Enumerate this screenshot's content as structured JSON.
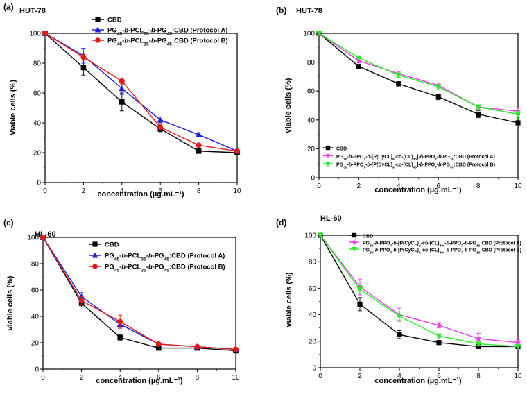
{
  "chart_data": [
    {
      "id": "a",
      "type": "line",
      "panel_label": "(a)",
      "cell_line": "HUT-78",
      "xlabel": "concentration (µg.mL⁻¹)",
      "ylabel": "Viable cells (%)",
      "xlim": [
        0,
        10
      ],
      "ylim": [
        0,
        100
      ],
      "xticks": [
        0,
        2,
        4,
        6,
        8,
        10
      ],
      "yticks": [
        0,
        20,
        40,
        60,
        80,
        100
      ],
      "legend_position": "top-center",
      "x": [
        0,
        2,
        4,
        6,
        8,
        10
      ],
      "series": [
        {
          "name": "CBD",
          "color": "#000000",
          "marker": "square",
          "values": [
            100,
            77,
            54,
            36,
            21,
            20
          ],
          "errors": [
            0,
            5,
            6,
            2,
            1,
            1
          ]
        },
        {
          "name": "PG45-b-PCL35-b-PG45:CBD  (Protocol A)",
          "color": "#1f1fd6",
          "marker": "triangle-up",
          "values": [
            100,
            85,
            63,
            42,
            32,
            21
          ],
          "errors": [
            0,
            5,
            4,
            2,
            1,
            1
          ]
        },
        {
          "name": "PG45-b-PCL35-b-PG45:CBD  (Protocol B)",
          "color": "#e31a1c",
          "marker": "circle",
          "values": [
            100,
            84,
            68,
            37,
            25,
            21
          ],
          "errors": [
            0,
            2,
            2,
            2,
            1,
            1
          ]
        }
      ]
    },
    {
      "id": "b",
      "type": "line",
      "panel_label": "(b)",
      "cell_line": "HUT-78",
      "xlabel": "concentration (µg.mL⁻¹)",
      "ylabel": "viable cells (%)",
      "xlim": [
        0,
        10
      ],
      "ylim": [
        0,
        100
      ],
      "xticks": [
        0,
        2,
        4,
        6,
        8,
        10
      ],
      "yticks": [
        0,
        20,
        40,
        60,
        80,
        100
      ],
      "legend_position": "bottom-left",
      "x": [
        0,
        2,
        4,
        6,
        8,
        10
      ],
      "series": [
        {
          "name": "CBD",
          "color": "#000000",
          "marker": "square",
          "values": [
            100,
            77,
            65,
            56,
            44,
            38
          ],
          "errors": [
            0,
            1.5,
            1.5,
            2,
            2.5,
            1
          ]
        },
        {
          "name": "PG30-b-PPO7-b-[P(CyCL)9-co-(CL)40]-b-PPO7-b-PG30:CBD  (Protocol A)",
          "color": "#e83de8",
          "marker": "star",
          "values": [
            100,
            81,
            72,
            64,
            49,
            46
          ],
          "errors": [
            0,
            1.5,
            1.5,
            1.5,
            1.5,
            2.5
          ]
        },
        {
          "name": "PG30-b-PPO7-b-[P(CyCL)9-co-(CL)40]-b-PPO7-b-PG30:CBD  (Protocol B)",
          "color": "#22ee22",
          "marker": "triangle-down",
          "values": [
            100,
            83,
            71,
            63,
            49,
            44
          ],
          "errors": [
            0,
            1.5,
            1.5,
            1.5,
            1.5,
            2.5
          ]
        }
      ]
    },
    {
      "id": "c",
      "type": "line",
      "panel_label": "(c)",
      "cell_line": "HL-60",
      "xlabel": "concentration (µg.mL⁻¹)",
      "ylabel": "viable cells (%)",
      "xlim": [
        0,
        10
      ],
      "ylim": [
        0,
        100
      ],
      "xticks": [
        0,
        2,
        4,
        6,
        8,
        10
      ],
      "yticks": [
        0,
        20,
        40,
        60,
        80,
        100
      ],
      "legend_position": "top-center",
      "x": [
        0,
        2,
        4,
        6,
        8,
        10
      ],
      "series": [
        {
          "name": "CBD",
          "color": "#000000",
          "marker": "square",
          "values": [
            100,
            50,
            24,
            16,
            16,
            14
          ],
          "errors": [
            0,
            3,
            2,
            1,
            1,
            1
          ]
        },
        {
          "name": "PG45-b-PCL35-b-PG45:CBD (Protocol A)",
          "color": "#1f1fd6",
          "marker": "triangle-up",
          "values": [
            100,
            55,
            34,
            19,
            17,
            15
          ],
          "errors": [
            0,
            3,
            3,
            1,
            1,
            1
          ]
        },
        {
          "name": "PG45-b-PCL35-b-PG45:CBD (Protocol B)",
          "color": "#e31a1c",
          "marker": "circle",
          "values": [
            100,
            52,
            36,
            19,
            17,
            15
          ],
          "errors": [
            0,
            3,
            5,
            1,
            1,
            1
          ]
        }
      ]
    },
    {
      "id": "d",
      "type": "line",
      "panel_label": "(d)",
      "cell_line": "HL-60",
      "xlabel": "concentration (µg.mL⁻¹)",
      "ylabel": "viable cells (%)",
      "xlim": [
        0,
        10
      ],
      "ylim": [
        0,
        100
      ],
      "xticks": [
        0,
        2,
        4,
        6,
        8,
        10
      ],
      "yticks": [
        0,
        20,
        40,
        60,
        80,
        100
      ],
      "legend_position": "top-center",
      "x": [
        0,
        2,
        4,
        6,
        8,
        10
      ],
      "series": [
        {
          "name": "CBD",
          "color": "#000000",
          "marker": "square",
          "values": [
            100,
            48,
            25,
            19,
            16,
            16
          ],
          "errors": [
            0,
            5,
            3,
            1,
            1,
            1
          ]
        },
        {
          "name": "PG30-b-PPO7-b-[P(CyCL)9-co-(CL)40]-b-PPO7-b-PG30:CBD (Protocol A)",
          "color": "#e83de8",
          "marker": "star",
          "values": [
            100,
            61,
            40,
            32,
            22,
            19
          ],
          "errors": [
            0,
            6,
            5,
            2,
            4,
            2
          ]
        },
        {
          "name": "PG30-b-PPO7-b-[P(CyCL)9-co-(CL)40]-b-PPO7-b-PG30:CBD (Protocol B)",
          "color": "#22ee22",
          "marker": "triangle-down",
          "values": [
            100,
            59,
            39,
            24,
            18,
            16
          ],
          "errors": [
            0,
            3,
            3,
            1,
            1,
            1
          ]
        }
      ]
    }
  ]
}
